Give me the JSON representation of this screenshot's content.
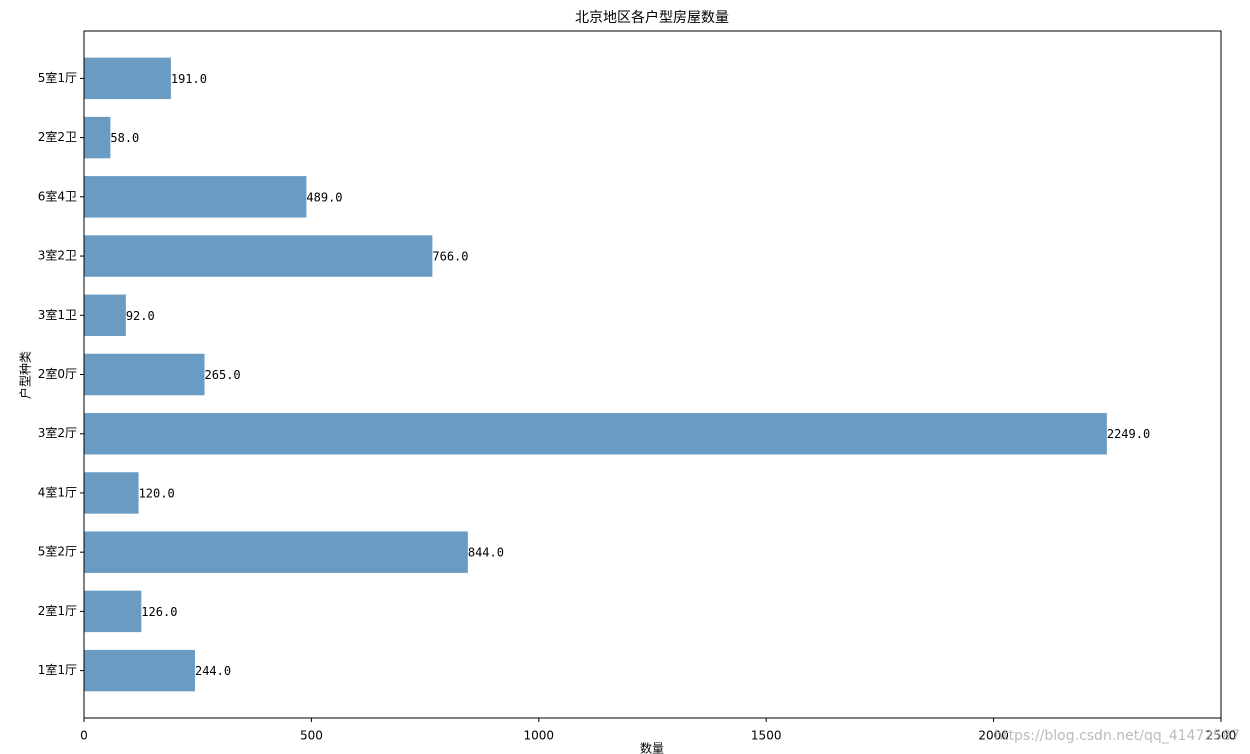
{
  "chart_data": {
    "type": "barh",
    "title": "北京地区各户型房屋数量",
    "xlabel": "数量",
    "ylabel": "户型种类",
    "categories": [
      "1室1厅",
      "2室1厅",
      "5室2厅",
      "4室1厅",
      "3室2厅",
      "2室0厅",
      "3室1卫",
      "3室2卫",
      "6室4卫",
      "2室2卫",
      "5室1厅"
    ],
    "values": [
      244,
      126,
      844,
      120,
      2249,
      265,
      92,
      766,
      489,
      58,
      191
    ],
    "value_labels": [
      "244.0",
      "126.0",
      "844.0",
      "120.0",
      "2249.0",
      "265.0",
      "92.0",
      "766.0",
      "489.0",
      "58.0",
      "191.0"
    ],
    "color": "#6a9bc3",
    "xlim": [
      0,
      2500
    ],
    "xticks": [
      0,
      500,
      1000,
      1500,
      2000,
      2500
    ],
    "watermark": "https://blog.csdn.net/qq_41472587"
  }
}
